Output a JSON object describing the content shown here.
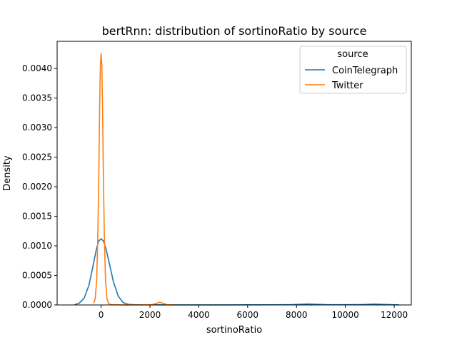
{
  "chart_data": {
    "type": "line",
    "title": "bertRnn: distribution of sortinoRatio by source",
    "xlabel": "sortinoRatio",
    "ylabel": "Density",
    "xlim": [
      -1800,
      12700
    ],
    "ylim": [
      0,
      0.00446
    ],
    "x_ticks": [
      0,
      2000,
      4000,
      6000,
      8000,
      10000,
      12000
    ],
    "x_tick_labels": [
      "0",
      "2000",
      "4000",
      "6000",
      "8000",
      "10000",
      "12000"
    ],
    "y_ticks": [
      0,
      0.0005,
      0.001,
      0.0015,
      0.002,
      0.0025,
      0.003,
      0.0035,
      0.004
    ],
    "y_tick_labels": [
      "0.0000",
      "0.0005",
      "0.0010",
      "0.0015",
      "0.0020",
      "0.0025",
      "0.0030",
      "0.0035",
      "0.0040"
    ],
    "grid": false,
    "legend": {
      "title": "source",
      "placement": "top-right"
    },
    "series": [
      {
        "name": "CoinTelegraph",
        "color": "#1f77b4",
        "x": [
          -1080,
          -900,
          -700,
          -500,
          -350,
          -200,
          -100,
          0,
          100,
          200,
          350,
          500,
          700,
          900,
          1100,
          1300,
          1600,
          2000,
          3000,
          4000,
          5000,
          6000,
          7000,
          7800,
          8200,
          8500,
          8800,
          9200,
          10000,
          10800,
          11200,
          11600,
          12200
        ],
        "y": [
          5e-06,
          3e-05,
          0.00011,
          0.00033,
          0.00062,
          0.00093,
          0.00108,
          0.00112,
          0.00108,
          0.00095,
          0.00068,
          0.0004,
          0.00015,
          4e-05,
          1e-05,
          5e-06,
          3e-06,
          2e-06,
          1e-06,
          1e-06,
          1e-06,
          2e-06,
          3e-06,
          6e-06,
          1.2e-05,
          1.6e-05,
          1.2e-05,
          6e-06,
          4e-06,
          8e-06,
          1.4e-05,
          8e-06,
          1e-06
        ]
      },
      {
        "name": "Twitter",
        "color": "#ff7f0e",
        "x": [
          -300,
          -240,
          -180,
          -130,
          -90,
          -60,
          -30,
          0,
          30,
          60,
          90,
          130,
          180,
          240,
          300,
          400,
          800,
          1600,
          2100,
          2250,
          2400,
          2550,
          2700,
          3000
        ],
        "y": [
          3e-05,
          0.00011,
          0.00042,
          0.00125,
          0.0023,
          0.00335,
          0.00405,
          0.00425,
          0.00405,
          0.00335,
          0.0023,
          0.00125,
          0.00042,
          0.00011,
          3e-05,
          5e-06,
          1e-06,
          1e-06,
          6e-06,
          2.5e-05,
          4.5e-05,
          2.5e-05,
          6e-06,
          1e-06
        ]
      }
    ]
  }
}
